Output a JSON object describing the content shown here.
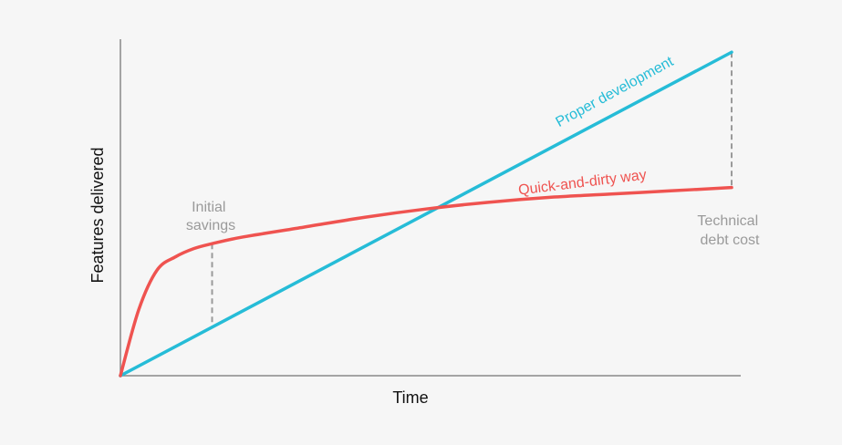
{
  "chart_data": {
    "type": "line",
    "title": "",
    "xlabel": "Time",
    "ylabel": "Features delivered",
    "xlim": [
      0,
      10
    ],
    "ylim": [
      0,
      10
    ],
    "grid": false,
    "series": [
      {
        "name": "Proper development",
        "color": "#26bcd7",
        "x": [
          0,
          10
        ],
        "y": [
          0,
          9.8
        ]
      },
      {
        "name": "Quick-and-dirty way",
        "color": "#ef5350",
        "x": [
          0,
          0.3,
          0.6,
          0.9,
          1.2,
          1.5,
          2.0,
          3.0,
          4.0,
          5.0,
          6.0,
          7.0,
          8.0,
          9.0,
          10.0
        ],
        "y": [
          0,
          2.0,
          3.2,
          3.6,
          3.85,
          4.0,
          4.2,
          4.5,
          4.8,
          5.05,
          5.25,
          5.4,
          5.5,
          5.6,
          5.7
        ]
      }
    ],
    "annotations": [
      {
        "id": "initial",
        "lines": [
          "Initial",
          "savings"
        ],
        "x": 1.5
      },
      {
        "id": "debt",
        "lines": [
          "Technical",
          "debt cost"
        ],
        "x": 10
      }
    ],
    "axis_color": "#888888",
    "dash_color": "#9a9a9a"
  }
}
